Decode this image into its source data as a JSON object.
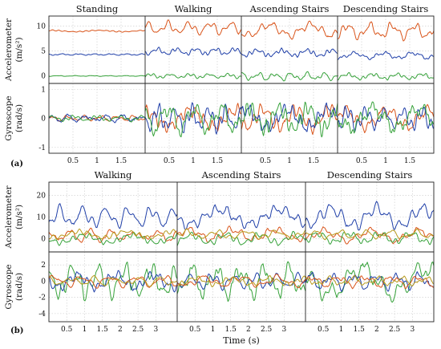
{
  "colors": {
    "red": "#d9541a",
    "blue": "#1f3fa8",
    "green": "#36a23a",
    "gold": "#b89a1c",
    "grid": "#c8c8c8"
  },
  "chart_data": [
    {
      "type": "line",
      "panel_label": "(a)",
      "titles": [
        "Standing",
        "Walking",
        "Ascending Stairs",
        "Descending Stairs"
      ],
      "subplots": [
        {
          "ylabel": "Accelerometer (m/s²)",
          "ylabel_main": "Accelerometer",
          "ylabel_unit": "(m/s²)",
          "ylim": [
            -1.5,
            12
          ],
          "yticks": [
            0,
            5,
            10
          ],
          "series": [
            {
              "name": "",
              "color_key": "red",
              "segments": [
                {
                  "base": 9.0,
                  "amp": 0.25
                },
                {
                  "base": 9.6,
                  "amp": 1.6
                },
                {
                  "base": 9.2,
                  "amp": 1.9
                },
                {
                  "base": 9.0,
                  "amp": 2.0
                }
              ]
            },
            {
              "name": "",
              "color_key": "blue",
              "segments": [
                {
                  "base": 4.3,
                  "amp": 0.2
                },
                {
                  "base": 4.9,
                  "amp": 0.9
                },
                {
                  "base": 4.6,
                  "amp": 1.0
                },
                {
                  "base": 4.1,
                  "amp": 0.9
                }
              ]
            },
            {
              "name": "",
              "color_key": "green",
              "segments": [
                {
                  "base": 0.0,
                  "amp": 0.1
                },
                {
                  "base": 0.0,
                  "amp": 0.6
                },
                {
                  "base": -0.1,
                  "amp": 1.0
                },
                {
                  "base": -0.1,
                  "amp": 0.8
                }
              ]
            }
          ]
        },
        {
          "ylabel": "Gyroscope (rad/s)",
          "ylabel_main": "Gyroscope",
          "ylabel_unit": "(rad/s)",
          "ylim": [
            -1.2,
            1.2
          ],
          "yticks": [
            -1,
            0,
            1
          ],
          "series": [
            {
              "name": "",
              "color_key": "red",
              "segments": [
                {
                  "base": 0,
                  "amp": 0.12
                },
                {
                  "base": 0,
                  "amp": 0.5
                },
                {
                  "base": 0,
                  "amp": 0.55
                },
                {
                  "base": 0,
                  "amp": 0.5
                }
              ]
            },
            {
              "name": "",
              "color_key": "blue",
              "segments": [
                {
                  "base": 0,
                  "amp": 0.15
                },
                {
                  "base": 0,
                  "amp": 0.55
                },
                {
                  "base": 0,
                  "amp": 0.55
                },
                {
                  "base": 0,
                  "amp": 0.5
                }
              ]
            },
            {
              "name": "",
              "color_key": "green",
              "segments": [
                {
                  "base": 0,
                  "amp": 0.12
                },
                {
                  "base": 0,
                  "amp": 0.65
                },
                {
                  "base": 0,
                  "amp": 0.65
                },
                {
                  "base": 0,
                  "amp": 0.6
                }
              ]
            }
          ]
        }
      ],
      "x_per_column": [
        0,
        2
      ],
      "xticks": [
        0.5,
        1,
        1.5
      ],
      "xtick_labels": [
        "0.5",
        "1",
        "1.5"
      ]
    },
    {
      "type": "line",
      "panel_label": "(b)",
      "titles": [
        "Walking",
        "Ascending Stairs",
        "Descending Stairs"
      ],
      "xlabel": "Time (s)",
      "subplots": [
        {
          "ylabel": "Accelerometer (m/s²)",
          "ylabel_main": "Accelerometer",
          "ylabel_unit": "(m/s²)",
          "ylim": [
            -6,
            26
          ],
          "yticks": [
            0,
            10,
            20
          ],
          "series": [
            {
              "name": "",
              "color_key": "blue",
              "segments": [
                {
                  "base": 10,
                  "amp": 6
                },
                {
                  "base": 10,
                  "amp": 6
                },
                {
                  "base": 10,
                  "amp": 7
                }
              ]
            },
            {
              "name": "",
              "color_key": "red",
              "segments": [
                {
                  "base": 1.5,
                  "amp": 3.5
                },
                {
                  "base": 2,
                  "amp": 4
                },
                {
                  "base": 1.5,
                  "amp": 4
                }
              ]
            },
            {
              "name": "",
              "color_key": "green",
              "segments": [
                {
                  "base": 0,
                  "amp": 3
                },
                {
                  "base": 0,
                  "amp": 3.5
                },
                {
                  "base": 0.5,
                  "amp": 3.5
                }
              ]
            },
            {
              "name": "",
              "color_key": "gold",
              "segments": [
                {
                  "base": 2,
                  "amp": 2.5
                },
                {
                  "base": 2,
                  "amp": 2.5
                },
                {
                  "base": 2,
                  "amp": 2.5
                }
              ]
            }
          ]
        },
        {
          "ylabel": "Gyroscope (rad/s)",
          "ylabel_main": "Gyroscope",
          "ylabel_unit": "(rad/s)",
          "ylim": [
            -5,
            3.6
          ],
          "yticks": [
            -4,
            -2,
            0,
            2
          ],
          "series": [
            {
              "name": "",
              "color_key": "green",
              "segments": [
                {
                  "base": 0,
                  "amp": 2.6
                },
                {
                  "base": 0,
                  "amp": 2.6
                },
                {
                  "base": 0,
                  "amp": 2.8
                }
              ]
            },
            {
              "name": "",
              "color_key": "blue",
              "segments": [
                {
                  "base": 0,
                  "amp": 1.4
                },
                {
                  "base": 0,
                  "amp": 1.2
                },
                {
                  "base": 0,
                  "amp": 1.3
                }
              ]
            },
            {
              "name": "",
              "color_key": "red",
              "segments": [
                {
                  "base": 0,
                  "amp": 0.9
                },
                {
                  "base": 0,
                  "amp": 0.9
                },
                {
                  "base": 0,
                  "amp": 0.9
                }
              ]
            },
            {
              "name": "",
              "color_key": "gold",
              "segments": [
                {
                  "base": 0,
                  "amp": 0.7
                },
                {
                  "base": 0,
                  "amp": 0.7
                },
                {
                  "base": 0,
                  "amp": 0.7
                }
              ]
            }
          ]
        }
      ],
      "x_per_column": [
        0,
        3.6
      ],
      "xticks": [
        0.5,
        1,
        1.5,
        2,
        2.5,
        3
      ],
      "xtick_labels": [
        "0.5",
        "1",
        "1.5",
        "2",
        "2.5",
        "3"
      ]
    }
  ]
}
